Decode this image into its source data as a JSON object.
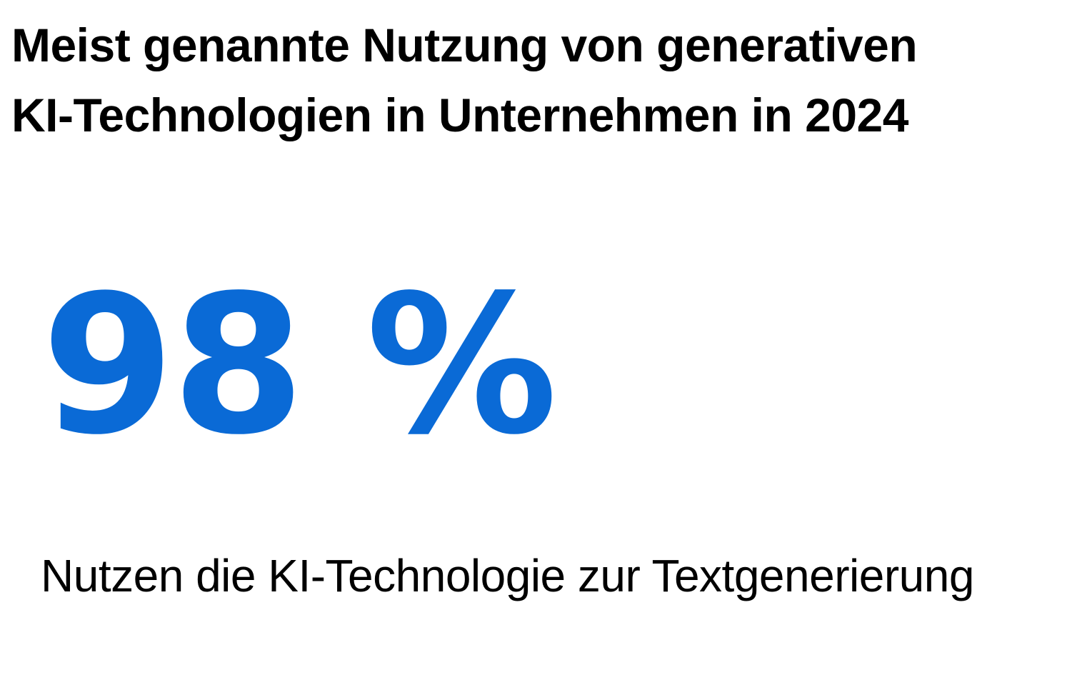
{
  "title": {
    "line1": "Meist genannte Nutzung von generativen",
    "line2": "KI-Technologien in Unternehmen in 2024"
  },
  "stat": {
    "value": "98 %",
    "description": "Nutzen die KI-Technologie zur Textgenerierung"
  },
  "colors": {
    "accent": "#0A6AD6",
    "text": "#000000",
    "background": "#FFFFFF"
  }
}
